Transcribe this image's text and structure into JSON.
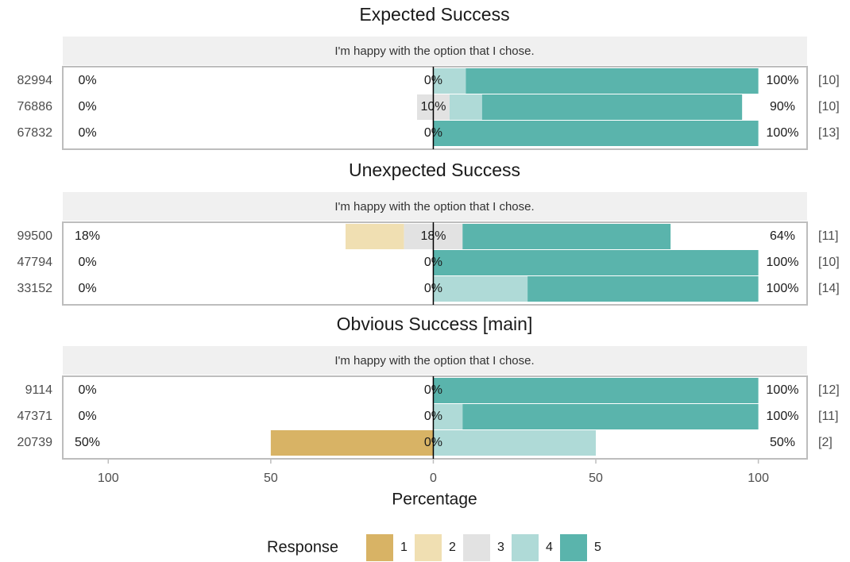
{
  "chart_data": {
    "type": "diverging_bar",
    "xlabel": "Percentage",
    "xlim": [
      -114,
      115
    ],
    "xticks": [
      {
        "value": -100,
        "label": "100"
      },
      {
        "value": -50,
        "label": "50"
      },
      0,
      50,
      100
    ],
    "legend_title": "Response",
    "series": [
      {
        "name": "1",
        "color": "#d8b365"
      },
      {
        "name": "2",
        "color": "#f0dfb2"
      },
      {
        "name": "3",
        "color": "#e2e2e2"
      },
      {
        "name": "4",
        "color": "#afdad7"
      },
      {
        "name": "5",
        "color": "#5ab4ac"
      }
    ],
    "facets": [
      {
        "title": "Expected Success",
        "subtitle": "I'm happy with the option that I chose.",
        "rows": [
          {
            "name": "82994",
            "values": [
              0,
              0,
              0,
              10,
              90
            ],
            "left_label": "0%",
            "neutral_label": "0%",
            "right_label": "100%",
            "count": "[10]"
          },
          {
            "name": "76886",
            "values": [
              0,
              0,
              10,
              10,
              80
            ],
            "left_label": "0%",
            "neutral_label": "10%",
            "right_label": "90%",
            "count": "[10]"
          },
          {
            "name": "67832",
            "values": [
              0,
              0,
              0,
              0,
              100
            ],
            "left_label": "0%",
            "neutral_label": "0%",
            "right_label": "100%",
            "count": "[13]"
          }
        ]
      },
      {
        "title": "Unexpected Success",
        "subtitle": "I'm happy with the option that I chose.",
        "rows": [
          {
            "name": "99500",
            "values": [
              0,
              18,
              18,
              0,
              64
            ],
            "left_label": "18%",
            "neutral_label": "18%",
            "right_label": "64%",
            "count": "[11]"
          },
          {
            "name": "47794",
            "values": [
              0,
              0,
              0,
              0,
              100
            ],
            "left_label": "0%",
            "neutral_label": "0%",
            "right_label": "100%",
            "count": "[10]"
          },
          {
            "name": "33152",
            "values": [
              0,
              0,
              0,
              29,
              71
            ],
            "left_label": "0%",
            "neutral_label": "0%",
            "right_label": "100%",
            "count": "[14]"
          }
        ]
      },
      {
        "title": "Obvious Success [main]",
        "subtitle": "I'm happy with the option that I chose.",
        "rows": [
          {
            "name": "9114",
            "values": [
              0,
              0,
              0,
              0,
              100
            ],
            "left_label": "0%",
            "neutral_label": "0%",
            "right_label": "100%",
            "count": "[12]"
          },
          {
            "name": "47371",
            "values": [
              0,
              0,
              0,
              9,
              91
            ],
            "left_label": "0%",
            "neutral_label": "0%",
            "right_label": "100%",
            "count": "[11]"
          },
          {
            "name": "20739",
            "values": [
              50,
              0,
              0,
              50,
              0
            ],
            "left_label": "50%",
            "neutral_label": "0%",
            "right_label": "50%",
            "count": "[2]"
          }
        ]
      }
    ]
  }
}
